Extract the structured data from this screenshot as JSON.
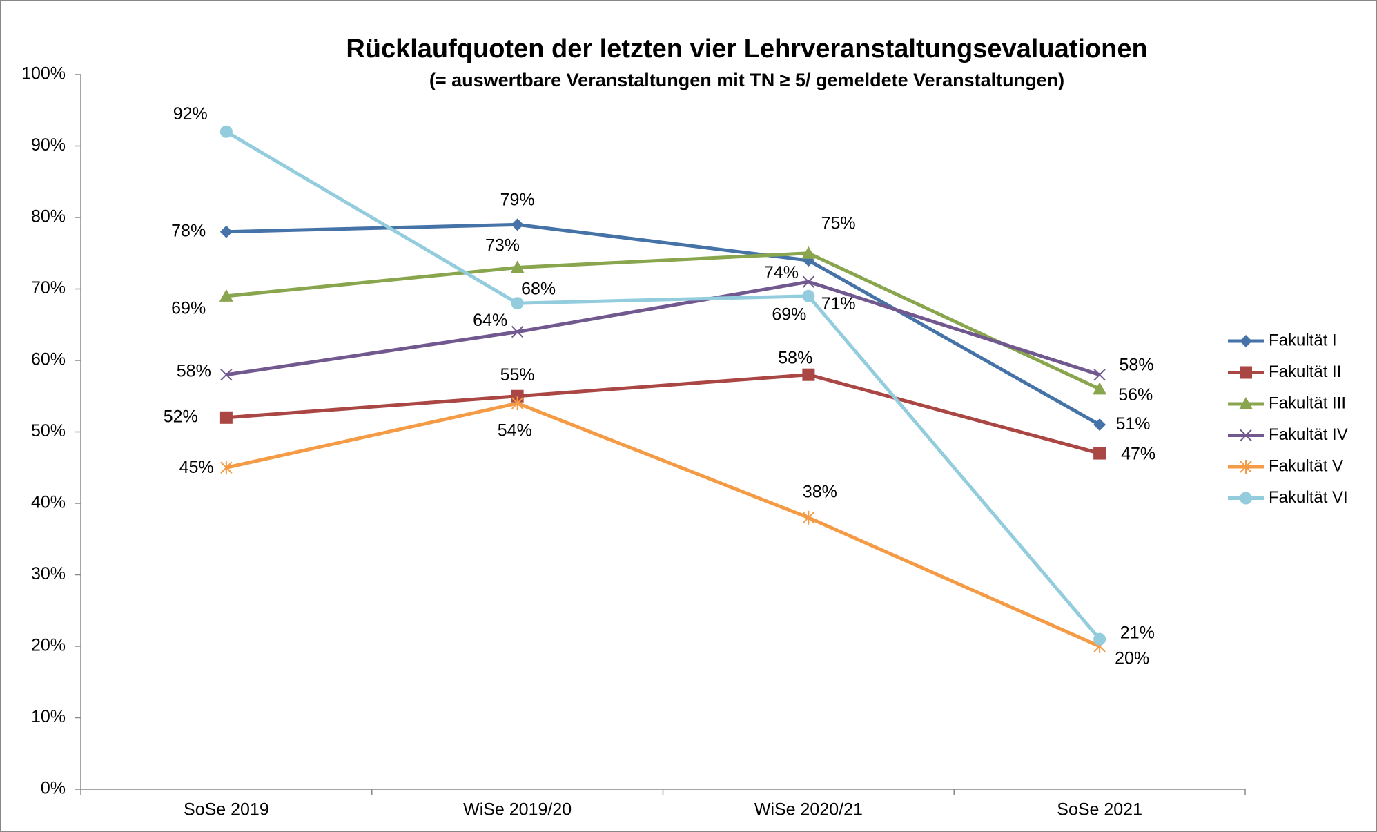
{
  "chart_data": {
    "type": "line",
    "title": "Rücklaufquoten der letzten vier Lehrveranstaltungsevaluationen",
    "subtitle": "(= auswertbare Veranstaltungen mit TN  ≥ 5/ gemeldete Veranstaltungen)",
    "categories": [
      "SoSe 2019",
      "WiSe 2019/20",
      "WiSe 2020/21",
      "SoSe 2021"
    ],
    "ylim": [
      0,
      100
    ],
    "yticks": [
      {
        "value": 0,
        "label": "0%"
      },
      {
        "value": 10,
        "label": "10%"
      },
      {
        "value": 20,
        "label": "20%"
      },
      {
        "value": 30,
        "label": "30%"
      },
      {
        "value": 40,
        "label": "40%"
      },
      {
        "value": 50,
        "label": "50%"
      },
      {
        "value": 60,
        "label": "60%"
      },
      {
        "value": 70,
        "label": "70%"
      },
      {
        "value": 80,
        "label": "80%"
      },
      {
        "value": 90,
        "label": "90%"
      },
      {
        "value": 100,
        "label": "100%"
      }
    ],
    "grid": false,
    "legend": "right",
    "series": [
      {
        "name": "Fakultät I",
        "color": "#4572a7",
        "marker": "diamond",
        "values": [
          78,
          79,
          74,
          51
        ],
        "value_labels": [
          "78%",
          "79%",
          "74%",
          "51%"
        ]
      },
      {
        "name": "Fakultät II",
        "color": "#aa4643",
        "marker": "square",
        "values": [
          52,
          55,
          58,
          47
        ],
        "value_labels": [
          "52%",
          "55%",
          "58%",
          "47%"
        ]
      },
      {
        "name": "Fakultät III",
        "color": "#89a54e",
        "marker": "triangle",
        "values": [
          69,
          73,
          75,
          56
        ],
        "value_labels": [
          "69%",
          "73%",
          "75%",
          "56%"
        ]
      },
      {
        "name": "Fakultät IV",
        "color": "#71588f",
        "marker": "x",
        "values": [
          58,
          64,
          71,
          58
        ],
        "value_labels": [
          "58%",
          "64%",
          "71%",
          "58%"
        ]
      },
      {
        "name": "Fakultät V",
        "color": "#f59a45",
        "marker": "star",
        "values": [
          45,
          54,
          38,
          20
        ],
        "value_labels": [
          "45%",
          "54%",
          "38%",
          "20%"
        ]
      },
      {
        "name": "Fakultät VI",
        "color": "#93cddd",
        "marker": "circle",
        "values": [
          92,
          68,
          69,
          21
        ],
        "value_labels": [
          "92%",
          "68%",
          "69%",
          "21%"
        ]
      }
    ]
  }
}
